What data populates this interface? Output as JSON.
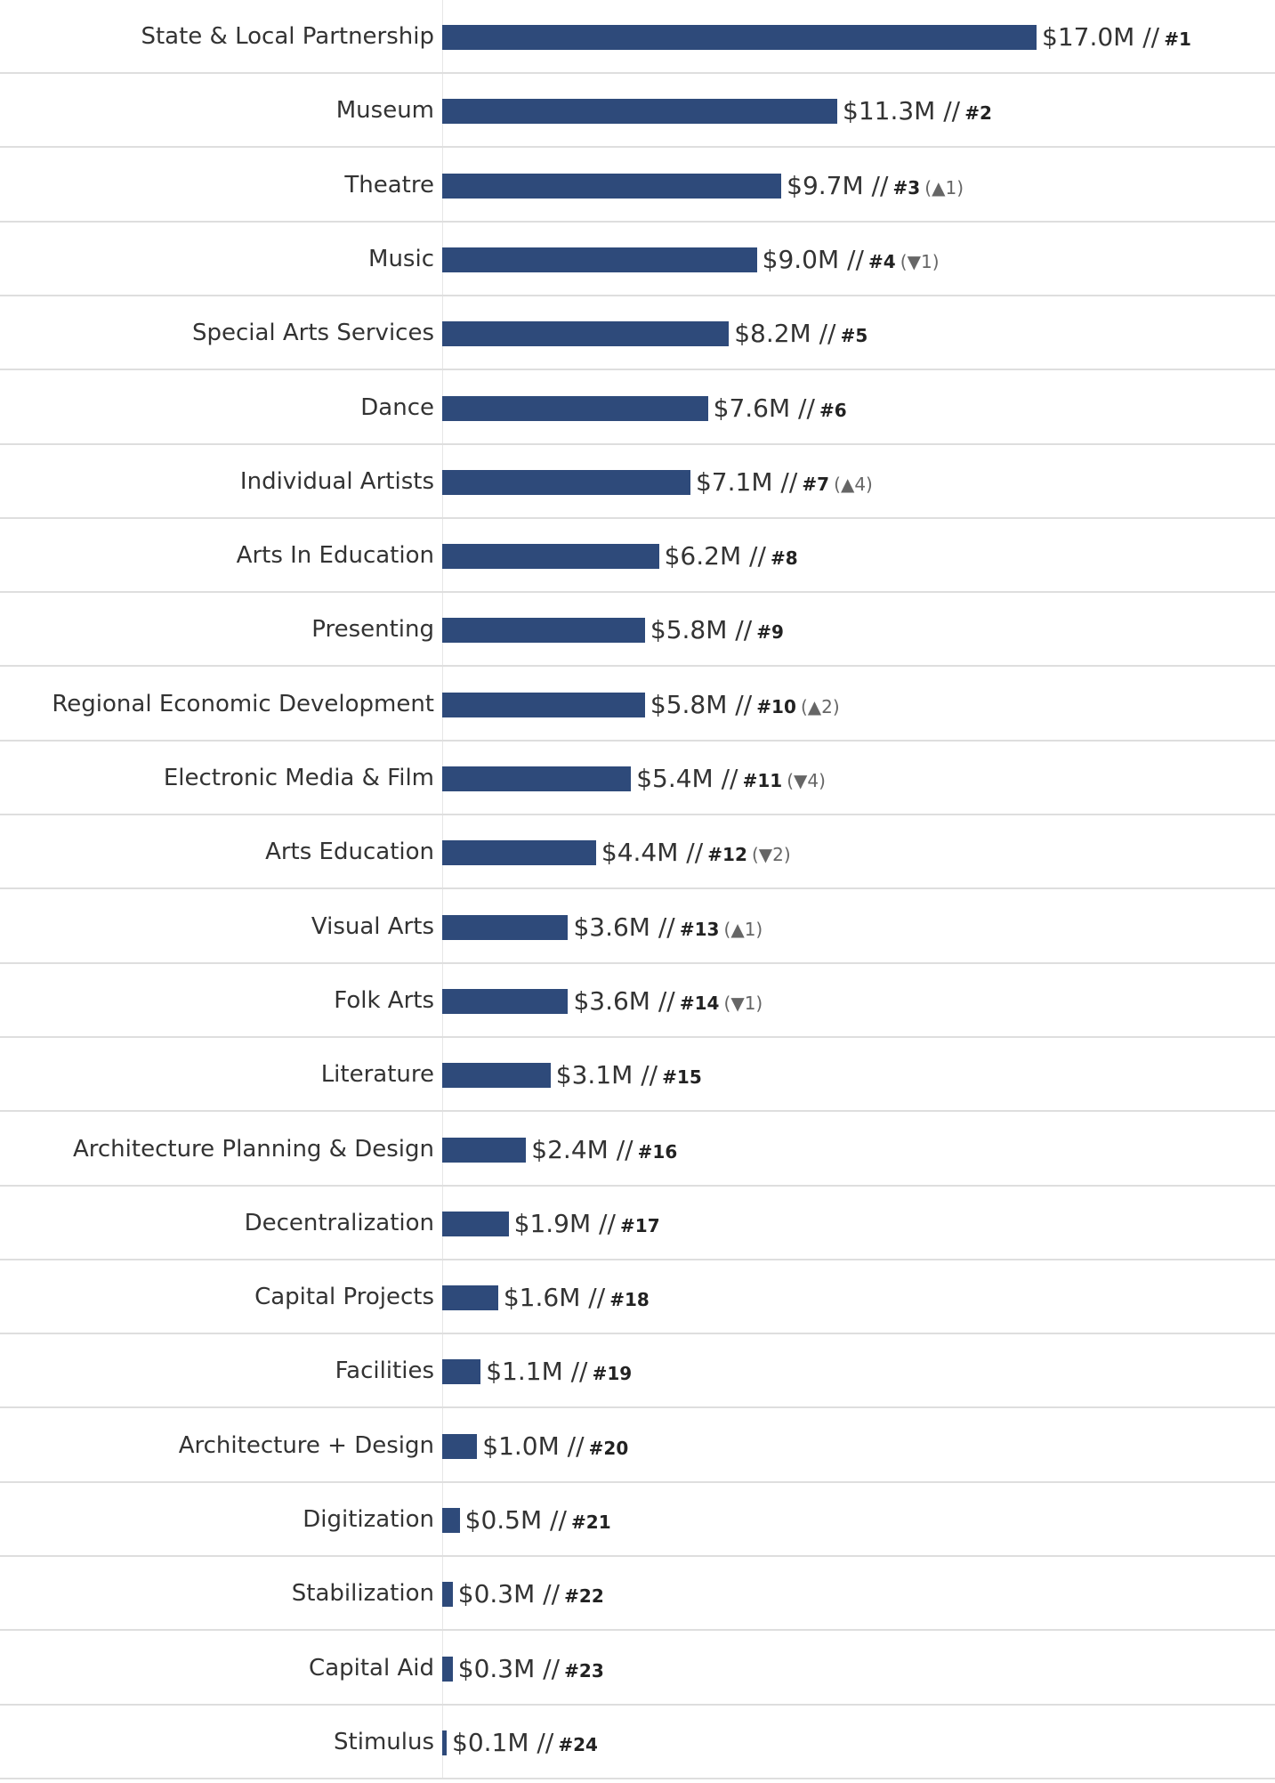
{
  "chart_data": {
    "type": "bar",
    "orientation": "horizontal",
    "bar_color": "#2e4a7a",
    "value_format": "${v}M // #{r}",
    "xlim": [
      0,
      17
    ],
    "categories": [
      "State & Local Partnership",
      "Museum",
      "Theatre",
      "Music",
      "Special Arts Services",
      "Dance",
      "Individual Artists",
      "Arts In Education",
      "Presenting",
      "Regional Economic Development",
      "Electronic Media & Film",
      "Arts Education",
      "Visual Arts",
      "Folk Arts",
      "Literature",
      "Architecture Planning & Design",
      "Decentralization",
      "Capital Projects",
      "Facilities",
      "Architecture + Design",
      "Digitization",
      "Stabilization",
      "Capital Aid",
      "Stimulus"
    ],
    "values": [
      17.0,
      11.3,
      9.7,
      9.0,
      8.2,
      7.6,
      7.1,
      6.2,
      5.8,
      5.8,
      5.4,
      4.4,
      3.6,
      3.6,
      3.1,
      2.4,
      1.9,
      1.6,
      1.1,
      1.0,
      0.5,
      0.3,
      0.3,
      0.1
    ],
    "value_labels": [
      "$17.0M //",
      "$11.3M //",
      "$9.7M //",
      "$9.0M //",
      "$8.2M //",
      "$7.6M //",
      "$7.1M //",
      "$6.2M //",
      "$5.8M //",
      "$5.8M //",
      "$5.4M //",
      "$4.4M //",
      "$3.6M //",
      "$3.6M //",
      "$3.1M //",
      "$2.4M //",
      "$1.9M //",
      "$1.6M //",
      "$1.1M //",
      "$1.0M //",
      "$0.5M //",
      "$0.3M //",
      "$0.3M //",
      "$0.1M //"
    ],
    "ranks": [
      "#1",
      "#2",
      "#3",
      "#4",
      "#5",
      "#6",
      "#7",
      "#8",
      "#9",
      "#10",
      "#11",
      "#12",
      "#13",
      "#14",
      "#15",
      "#16",
      "#17",
      "#18",
      "#19",
      "#20",
      "#21",
      "#22",
      "#23",
      "#24"
    ],
    "rank_changes": [
      "",
      "",
      "(▲1)",
      "(▼1)",
      "",
      "",
      "(▲4)",
      "",
      "",
      "(▲2)",
      "(▼4)",
      "(▼2)",
      "(▲1)",
      "(▼1)",
      "",
      "",
      "",
      "",
      "",
      "",
      "",
      "",
      "",
      ""
    ],
    "grid": false,
    "legend": "none"
  }
}
